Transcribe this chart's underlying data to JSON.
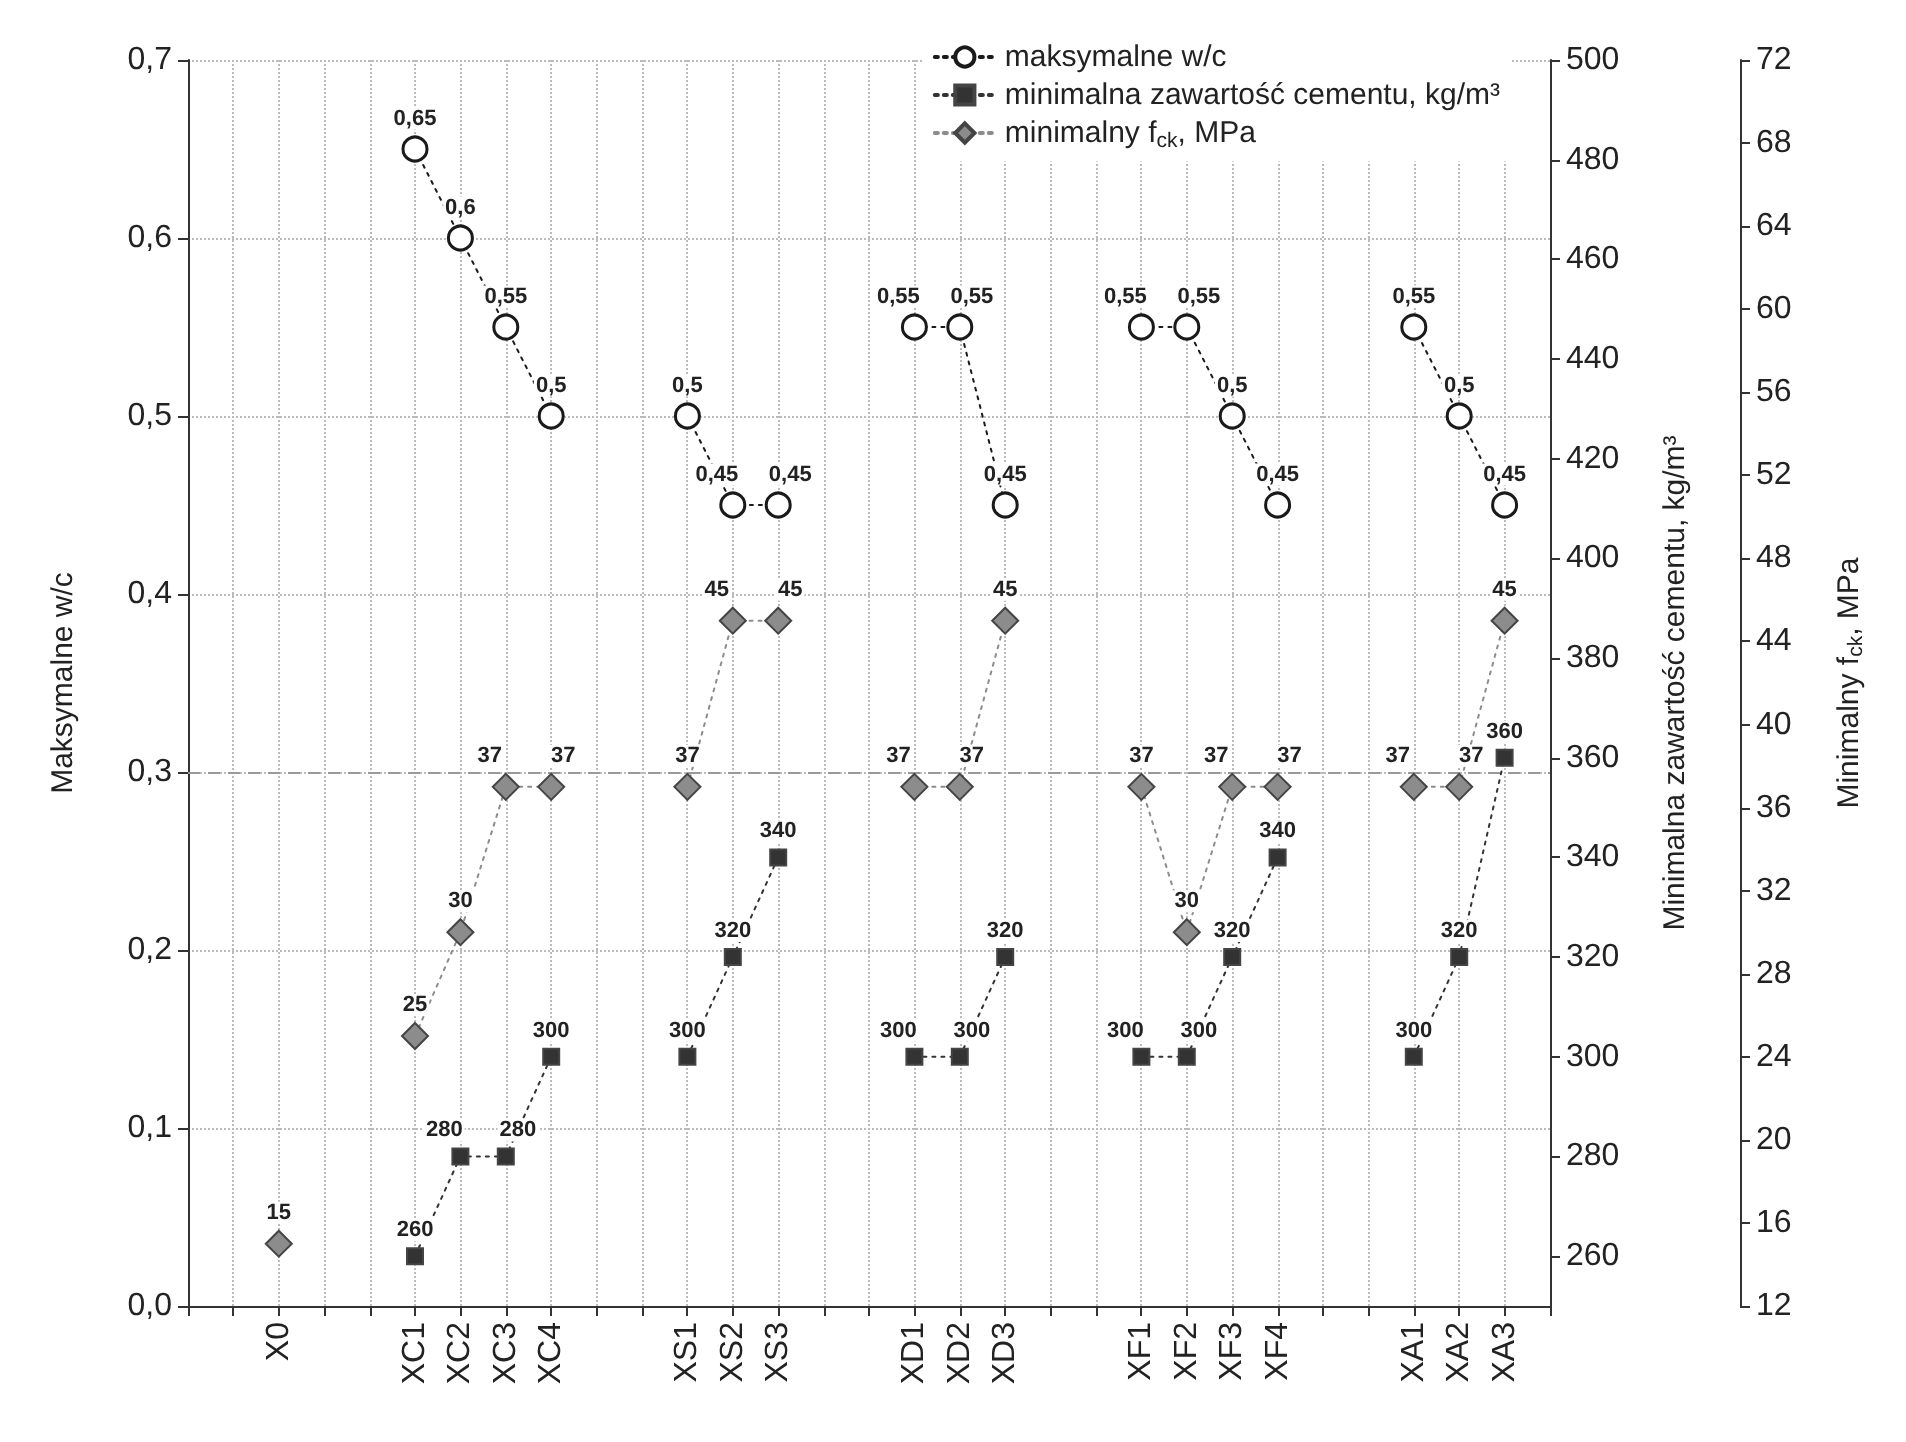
{
  "chart_data": {
    "type": "line",
    "ylabel": "Maksymalne w/c",
    "y2label": "Minimalna zawartość cementu, kg/m³",
    "y3label": "Minimalny f$_{ck}$, MPa",
    "categories": [
      null,
      null,
      "X0",
      null,
      null,
      "XC1",
      "XC2",
      "XC3",
      "XC4",
      null,
      null,
      "XS1",
      "XS2",
      "XS3",
      null,
      null,
      "XD1",
      "XD2",
      "XD3",
      null,
      null,
      "XF1",
      "XF2",
      "XF3",
      "XF4",
      null,
      null,
      "XA1",
      "XA2",
      "XA3",
      null
    ],
    "series": [
      {
        "name": "maksymalne w/c",
        "color": "#1a1a1a",
        "marker": "circle",
        "values": [
          null,
          null,
          null,
          null,
          null,
          0.65,
          0.6,
          0.55,
          0.5,
          null,
          null,
          0.5,
          0.45,
          0.45,
          null,
          null,
          0.55,
          0.55,
          0.45,
          null,
          null,
          0.55,
          0.55,
          0.5,
          0.45,
          null,
          null,
          0.55,
          0.5,
          0.45,
          null
        ],
        "value_labels": [
          null,
          null,
          null,
          null,
          null,
          "0,65",
          "0,6",
          "0,55",
          "0,5",
          null,
          null,
          "0,5",
          "0,45",
          "0,45",
          null,
          null,
          "0,55",
          "0,55",
          "0,45",
          null,
          null,
          "0,55",
          "0,55",
          "0,5",
          "0,45",
          null,
          null,
          "0,55",
          "0,5",
          "0,45",
          null
        ]
      },
      {
        "name": "minimalna zawartość cementu, kg/m³",
        "color": "#333333",
        "marker": "square",
        "axis": "y2",
        "values": [
          null,
          null,
          null,
          null,
          null,
          260,
          280,
          280,
          300,
          null,
          null,
          300,
          320,
          340,
          null,
          null,
          300,
          300,
          320,
          null,
          null,
          300,
          300,
          320,
          340,
          null,
          null,
          300,
          320,
          360,
          null
        ],
        "value_labels": [
          null,
          null,
          null,
          null,
          null,
          "260",
          "280",
          "280",
          "300",
          null,
          null,
          "300",
          "320",
          "340",
          null,
          null,
          "300",
          "300",
          "320",
          null,
          null,
          "300",
          "300",
          "320",
          "340",
          null,
          null,
          "300",
          "320",
          "360",
          null
        ]
      },
      {
        "name": "minimalny f$_{ck}$, MPa",
        "color": "#8c8c8c",
        "marker": "diamond",
        "axis": "y3",
        "values": [
          null,
          null,
          15,
          null,
          null,
          25,
          30,
          37,
          37,
          null,
          null,
          37,
          45,
          45,
          null,
          null,
          37,
          37,
          45,
          null,
          null,
          37,
          30,
          37,
          37,
          null,
          null,
          37,
          37,
          45,
          null
        ],
        "value_labels": [
          null,
          null,
          "15",
          null,
          null,
          "25",
          "30",
          "37",
          "37",
          null,
          null,
          "37",
          "45",
          "45",
          null,
          null,
          "37",
          "37",
          "45",
          null,
          null,
          "37",
          "30",
          "37",
          "37",
          null,
          null,
          "37",
          "37",
          "45",
          null
        ]
      }
    ],
    "ylim": [
      0,
      0.7
    ],
    "yticks": [
      {
        "value": 0,
        "label": "0,0"
      },
      {
        "value": 0.1,
        "label": "0,1"
      },
      {
        "value": 0.2,
        "label": "0,2"
      },
      {
        "value": 0.3,
        "label": "0,3"
      },
      {
        "value": 0.4,
        "label": "0,4"
      },
      {
        "value": 0.5,
        "label": "0,5"
      },
      {
        "value": 0.6,
        "label": "0,6"
      },
      {
        "value": 0.7,
        "label": "0,7"
      }
    ],
    "y2lim": [
      250,
      500
    ],
    "y2ticks": [
      260,
      280,
      300,
      320,
      340,
      360,
      380,
      400,
      420,
      440,
      460,
      480,
      500
    ],
    "y3lim": [
      12,
      72
    ],
    "y3ticks": [
      12,
      16,
      20,
      24,
      28,
      32,
      36,
      40,
      44,
      48,
      52,
      56,
      60,
      64,
      68,
      72
    ],
    "ref_lines": [
      {
        "axis": "y",
        "value": 0.3,
        "label": null,
        "color": "#999999",
        "line_style": "dashed"
      }
    ],
    "grid": true,
    "legend": "top right",
    "line_style": "dotted"
  }
}
